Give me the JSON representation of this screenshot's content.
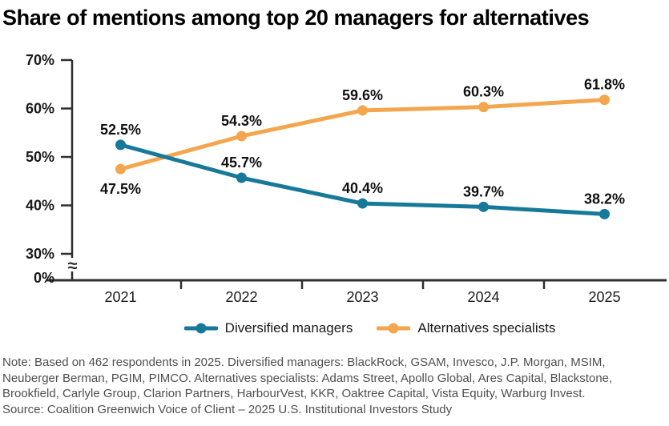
{
  "page": {
    "title": "Share of mentions among top 20 managers for alternatives"
  },
  "chart_data": {
    "type": "line",
    "title": "Share of mentions among top 20 managers for alternatives",
    "x_categories": [
      "2021",
      "2022",
      "2023",
      "2024",
      "2025"
    ],
    "y_ticks": [
      {
        "value": 70,
        "label": "70%"
      },
      {
        "value": 60,
        "label": "60%"
      },
      {
        "value": 50,
        "label": "50%"
      },
      {
        "value": 40,
        "label": "40%"
      },
      {
        "value": 30,
        "label": "30%"
      },
      {
        "value": 0,
        "label": "0%"
      }
    ],
    "y_axis_break": true,
    "unit": "%",
    "grid": false,
    "legend_position": "bottom-center",
    "series": [
      {
        "name": "Diversified managers",
        "color": "#17799A",
        "values": [
          52.5,
          45.7,
          40.4,
          39.7,
          38.2
        ],
        "point_labels": [
          "52.5%",
          "45.7%",
          "40.4%",
          "39.7%",
          "38.2%"
        ],
        "label_placement": [
          "above",
          "above",
          "above",
          "above",
          "above"
        ]
      },
      {
        "name": "Alternatives specialists",
        "color": "#F3A64D",
        "values": [
          47.5,
          54.3,
          59.6,
          60.3,
          61.8
        ],
        "point_labels": [
          "47.5%",
          "54.3%",
          "59.6%",
          "60.3%",
          "61.8%"
        ],
        "label_placement": [
          "below",
          "above",
          "above",
          "above",
          "above"
        ]
      }
    ]
  },
  "colors": {
    "axis": "#2f2f2f",
    "data_label_text": "#111111",
    "tick_text": "#1a1a1a",
    "footer_text": "#4f4f4f"
  },
  "footer": {
    "lines": [
      "Note: Based on 462 respondents in 2025. Diversified managers: BlackRock, GSAM, Invesco, J.P. Morgan, MSIM,",
      "Neuberger Berman, PGIM, PIMCO. Alternatives specialists: Adams Street, Apollo Global, Ares Capital, Blackstone,",
      "Brookfield, Carlyle Group, Clarion Partners, HarbourVest, KKR, Oaktree Capital, Vista Equity, Warburg Invest.",
      "Source: Coalition Greenwich Voice of Client – 2025 U.S. Institutional Investors Study"
    ]
  }
}
